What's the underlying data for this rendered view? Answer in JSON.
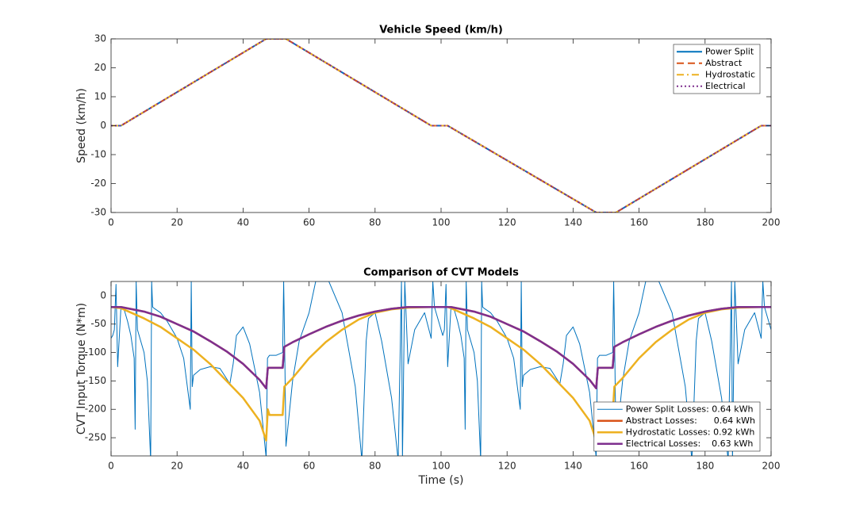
{
  "chart_data": [
    {
      "type": "line",
      "title": "Vehicle Speed (km/h)",
      "ylabel": "Speed (km/h)",
      "x": [
        0,
        3,
        47,
        53,
        97,
        102,
        147,
        153,
        197,
        200
      ],
      "series": [
        {
          "name": "Power Split",
          "color": "#0072BD",
          "style": "solid",
          "values": [
            0,
            0,
            30,
            30,
            0,
            0,
            -30,
            -30,
            0,
            0
          ]
        },
        {
          "name": "Abstract",
          "color": "#D95319",
          "style": "dashed",
          "values": [
            0,
            0,
            30,
            30,
            0,
            0,
            -30,
            -30,
            0,
            0
          ]
        },
        {
          "name": "Hydrostatic",
          "color": "#EDB120",
          "style": "dashdot",
          "values": [
            0,
            0,
            30,
            30,
            0,
            0,
            -30,
            -30,
            0,
            0
          ]
        },
        {
          "name": "Electrical",
          "color": "#7E2F8E",
          "style": "dotted",
          "values": [
            0,
            0,
            30,
            30,
            0,
            0,
            -30,
            -30,
            0,
            0
          ]
        }
      ],
      "xlim": [
        0,
        200
      ],
      "xticks": [
        0,
        20,
        40,
        60,
        80,
        100,
        120,
        140,
        160,
        180,
        200
      ],
      "ylim": [
        -30,
        30
      ],
      "yticks": [
        -30,
        -20,
        -10,
        0,
        10,
        20,
        30
      ],
      "legend": "northeast"
    },
    {
      "type": "line",
      "title": "Comparison of CVT Models",
      "ylabel": "CVT Input Torque (N*m)",
      "xlabel": "Time (s)",
      "series": [
        {
          "name": "Power Split Losses: 0.64 kWh",
          "color": "#0072BD",
          "style": "solid",
          "width": 1,
          "x": [
            0,
            0.5,
            1,
            1.5,
            2,
            3,
            4,
            5,
            6,
            7,
            7.3,
            7.6,
            8,
            9,
            10,
            11,
            12,
            12.3,
            12.6,
            13,
            15,
            17,
            20,
            22,
            24,
            24.3,
            24.6,
            25,
            27,
            30,
            33,
            36,
            37,
            38,
            40,
            42,
            45,
            47,
            47.4,
            48,
            50,
            52,
            52.3,
            52.6,
            53,
            55,
            57,
            60,
            62,
            66,
            70,
            74,
            76,
            77,
            77.3,
            78,
            80,
            82,
            85,
            87,
            88,
            88.3,
            89,
            90,
            92,
            95,
            97,
            97.5,
            98,
            100,
            100.5,
            101,
            101.5,
            102,
            103,
            104,
            105,
            106,
            107,
            107.3,
            107.6,
            108,
            109,
            110,
            111,
            112,
            112.3,
            112.6,
            113,
            115,
            117,
            120,
            122,
            124,
            124.3,
            124.6,
            125,
            127,
            130,
            133,
            136,
            137,
            138,
            140,
            142,
            145,
            147,
            147.4,
            148,
            150,
            152,
            152.3,
            152.6,
            153,
            155,
            157,
            160,
            162,
            166,
            170,
            174,
            176,
            177,
            177.3,
            178,
            180,
            182,
            185,
            187,
            188,
            188.3,
            189,
            190,
            192,
            195,
            197,
            197.5,
            198,
            200
          ],
          "values": [
            -75,
            -70,
            -60,
            20,
            -125,
            -20,
            -25,
            -45,
            -70,
            -110,
            -235,
            25,
            -60,
            -80,
            -100,
            -150,
            -290,
            25,
            -20,
            -22,
            -30,
            -45,
            -75,
            -110,
            -200,
            25,
            -160,
            -140,
            -130,
            -125,
            -128,
            -155,
            -120,
            -70,
            -55,
            -85,
            -170,
            -285,
            -110,
            -105,
            -105,
            -100,
            25,
            -85,
            -265,
            -150,
            -80,
            -30,
            25,
            25,
            -30,
            -160,
            -290,
            -130,
            -80,
            -40,
            -30,
            -80,
            -180,
            -290,
            25,
            -290,
            25,
            -120,
            -60,
            -30,
            -75,
            25,
            -20,
            -60,
            -70,
            -60,
            20,
            -125,
            -20,
            -25,
            -45,
            -70,
            -110,
            -235,
            25,
            -60,
            -80,
            -100,
            -150,
            -290,
            25,
            -20,
            -22,
            -30,
            -45,
            -75,
            -110,
            -200,
            25,
            -160,
            -140,
            -130,
            -125,
            -128,
            -155,
            -120,
            -70,
            -55,
            -85,
            -170,
            -285,
            -110,
            -105,
            -105,
            -100,
            25,
            -85,
            -265,
            -150,
            -80,
            -30,
            25,
            25,
            -30,
            -160,
            -290,
            -130,
            -80,
            -40,
            -30,
            -80,
            -180,
            -290,
            25,
            -290,
            25,
            -120,
            -60,
            -30,
            -75,
            25,
            -20,
            -60
          ]
        },
        {
          "name": "Abstract Losses:      0.64 kWh",
          "color": "#D95319",
          "style": "solid",
          "width": 2.5,
          "x": [
            0,
            3,
            10,
            15,
            20,
            25,
            30,
            35,
            40,
            45,
            47,
            47.5,
            52,
            52.5,
            55,
            60,
            65,
            70,
            75,
            80,
            85,
            90,
            97,
            102,
            103,
            110,
            115,
            120,
            125,
            130,
            135,
            140,
            145,
            147,
            147.5,
            152,
            152.5,
            155,
            160,
            165,
            170,
            175,
            180,
            185,
            190,
            197,
            200
          ],
          "values": [
            -20,
            -20,
            -28,
            -37,
            -50,
            -63,
            -80,
            -98,
            -120,
            -148,
            -163,
            -127,
            -127,
            -90,
            -82,
            -68,
            -55,
            -44,
            -35,
            -28,
            -23,
            -20,
            -20,
            -20,
            -20,
            -28,
            -37,
            -50,
            -63,
            -80,
            -98,
            -120,
            -148,
            -163,
            -127,
            -127,
            -90,
            -82,
            -68,
            -55,
            -44,
            -35,
            -28,
            -23,
            -20,
            -20,
            -20
          ]
        },
        {
          "name": "Hydrostatic Losses: 0.92 kWh",
          "color": "#EDB120",
          "style": "solid",
          "width": 2.5,
          "x": [
            0,
            3,
            10,
            15,
            20,
            25,
            30,
            35,
            40,
            45,
            47,
            47.5,
            48,
            52,
            52.5,
            55,
            60,
            65,
            70,
            75,
            80,
            85,
            90,
            97,
            102,
            103,
            110,
            115,
            120,
            125,
            130,
            135,
            140,
            145,
            147,
            147.5,
            148,
            152,
            152.5,
            155,
            160,
            165,
            170,
            175,
            180,
            185,
            190,
            197,
            200
          ],
          "values": [
            -20,
            -22,
            -40,
            -55,
            -75,
            -95,
            -120,
            -150,
            -180,
            -220,
            -255,
            -200,
            -210,
            -210,
            -160,
            -145,
            -110,
            -82,
            -60,
            -42,
            -30,
            -24,
            -21,
            -20,
            -20,
            -22,
            -40,
            -55,
            -75,
            -95,
            -120,
            -150,
            -180,
            -220,
            -255,
            -200,
            -210,
            -210,
            -160,
            -145,
            -110,
            -82,
            -60,
            -42,
            -30,
            -24,
            -21,
            -20,
            -20
          ]
        },
        {
          "name": "Electrical Losses:    0.63 kWh",
          "color": "#7E2F8E",
          "style": "solid",
          "width": 2.5,
          "x": [
            0,
            3,
            10,
            15,
            20,
            25,
            30,
            35,
            40,
            45,
            47,
            47.5,
            52,
            52.5,
            55,
            60,
            65,
            70,
            75,
            80,
            85,
            90,
            97,
            102,
            103,
            110,
            115,
            120,
            125,
            130,
            135,
            140,
            145,
            147,
            147.5,
            152,
            152.5,
            155,
            160,
            165,
            170,
            175,
            180,
            185,
            190,
            197,
            200
          ],
          "values": [
            -20,
            -20,
            -28,
            -37,
            -50,
            -63,
            -80,
            -98,
            -120,
            -148,
            -163,
            -127,
            -127,
            -90,
            -82,
            -68,
            -55,
            -44,
            -35,
            -28,
            -23,
            -20,
            -20,
            -20,
            -20,
            -28,
            -37,
            -50,
            -63,
            -80,
            -98,
            -120,
            -148,
            -163,
            -127,
            -127,
            -90,
            -82,
            -68,
            -55,
            -44,
            -35,
            -28,
            -23,
            -20,
            -20,
            -20
          ]
        }
      ],
      "xlim": [
        0,
        200
      ],
      "xticks": [
        0,
        20,
        40,
        60,
        80,
        100,
        120,
        140,
        160,
        180,
        200
      ],
      "ylim": [
        -282,
        25
      ],
      "yticks": [
        -250,
        -200,
        -150,
        -100,
        -50,
        0
      ],
      "legend": "southeast"
    }
  ]
}
